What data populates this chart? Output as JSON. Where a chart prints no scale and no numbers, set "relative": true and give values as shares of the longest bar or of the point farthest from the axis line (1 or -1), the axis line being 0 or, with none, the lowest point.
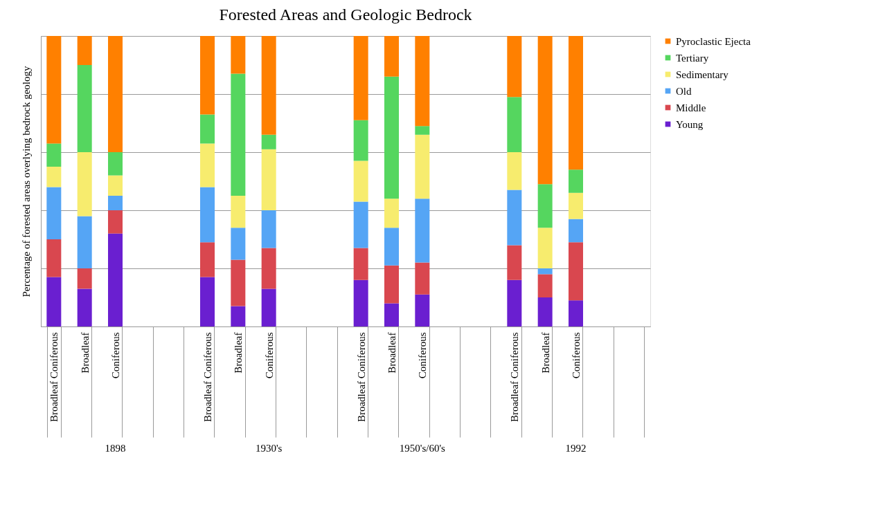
{
  "chart_data": {
    "type": "bar",
    "title": "Forested Areas and Geologic Bedrock",
    "ylabel": "Percentage of forested areas overlying bedrock geology",
    "categories": [
      "Broadleaf Coniferous",
      "Broadleaf",
      "Coniferous",
      null,
      null,
      "Broadleaf Coniferous",
      "Broadleaf",
      "Coniferous",
      null,
      null,
      "Broadleaf Coniferous",
      "Broadleaf",
      "Coniferous",
      null,
      null,
      "Broadleaf Coniferous",
      "Broadleaf",
      "Coniferous",
      null,
      null
    ],
    "annotations": [
      "1898",
      "1930's",
      "1950's/60's",
      "1992"
    ],
    "stacked": true,
    "relative": true,
    "grid": "y",
    "legend": "right",
    "tick_labels": "x",
    "series": [
      {
        "name": "Young",
        "color": "#6a1fd0",
        "values": [
          0.17,
          0.13,
          0.32,
          null,
          null,
          0.17,
          0.07,
          0.13,
          null,
          null,
          0.16,
          0.08,
          0.11,
          null,
          null,
          0.16,
          0.1,
          0.09,
          null,
          null
        ]
      },
      {
        "name": "Middle",
        "color": "#d9474f",
        "values": [
          0.13,
          0.07,
          0.08,
          null,
          null,
          0.12,
          0.16,
          0.14,
          null,
          null,
          0.11,
          0.13,
          0.11,
          null,
          null,
          0.12,
          0.08,
          0.2,
          null,
          null
        ]
      },
      {
        "name": "Old",
        "color": "#55a5f5",
        "values": [
          0.18,
          0.18,
          0.05,
          null,
          null,
          0.19,
          0.11,
          0.13,
          null,
          null,
          0.16,
          0.13,
          0.22,
          null,
          null,
          0.19,
          0.02,
          0.08,
          null,
          null
        ]
      },
      {
        "name": "Sedimentary",
        "color": "#f7ec6e",
        "values": [
          0.07,
          0.22,
          0.07,
          null,
          null,
          0.15,
          0.11,
          0.21,
          null,
          null,
          0.14,
          0.1,
          0.22,
          null,
          null,
          0.13,
          0.14,
          0.09,
          null,
          null
        ]
      },
      {
        "name": "Tertiary",
        "color": "#55d65f",
        "values": [
          0.08,
          0.3,
          0.08,
          null,
          null,
          0.1,
          0.42,
          0.05,
          null,
          null,
          0.14,
          0.42,
          0.03,
          null,
          null,
          0.19,
          0.15,
          0.08,
          null,
          null
        ]
      },
      {
        "name": "Pyroclastic Ejecta",
        "color": "#ff8000",
        "values": [
          0.37,
          0.1,
          0.4,
          null,
          null,
          0.27,
          0.13,
          0.34,
          null,
          null,
          0.29,
          0.14,
          0.31,
          null,
          null,
          0.21,
          0.51,
          0.46,
          null,
          null
        ]
      }
    ]
  }
}
